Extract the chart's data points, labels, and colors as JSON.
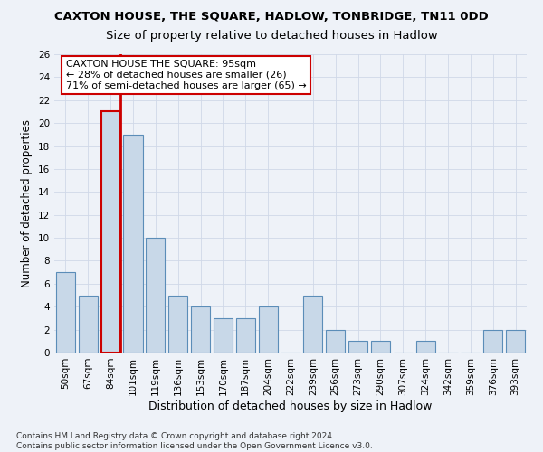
{
  "title": "CAXTON HOUSE, THE SQUARE, HADLOW, TONBRIDGE, TN11 0DD",
  "subtitle": "Size of property relative to detached houses in Hadlow",
  "xlabel": "Distribution of detached houses by size in Hadlow",
  "ylabel": "Number of detached properties",
  "categories": [
    "50sqm",
    "67sqm",
    "84sqm",
    "101sqm",
    "119sqm",
    "136sqm",
    "153sqm",
    "170sqm",
    "187sqm",
    "204sqm",
    "222sqm",
    "239sqm",
    "256sqm",
    "273sqm",
    "290sqm",
    "307sqm",
    "324sqm",
    "342sqm",
    "359sqm",
    "376sqm",
    "393sqm"
  ],
  "values": [
    7,
    5,
    21,
    19,
    10,
    5,
    4,
    3,
    3,
    4,
    0,
    5,
    2,
    1,
    1,
    0,
    1,
    0,
    0,
    2,
    2
  ],
  "bar_color": "#c8d8e8",
  "bar_edge_color": "#5b8db8",
  "highlight_bar_index": 2,
  "highlight_edge_color": "#cc0000",
  "vline_x_index": 2,
  "vline_color": "#cc0000",
  "annotation_text": "CAXTON HOUSE THE SQUARE: 95sqm\n← 28% of detached houses are smaller (26)\n71% of semi-detached houses are larger (65) →",
  "annotation_box_color": "#ffffff",
  "annotation_box_edge_color": "#cc0000",
  "ylim": [
    0,
    26
  ],
  "yticks": [
    0,
    2,
    4,
    6,
    8,
    10,
    12,
    14,
    16,
    18,
    20,
    22,
    24,
    26
  ],
  "grid_color": "#d0d8e8",
  "background_color": "#eef2f8",
  "footer_text": "Contains HM Land Registry data © Crown copyright and database right 2024.\nContains public sector information licensed under the Open Government Licence v3.0.",
  "title_fontsize": 9.5,
  "subtitle_fontsize": 9.5,
  "xlabel_fontsize": 9,
  "ylabel_fontsize": 8.5,
  "tick_fontsize": 7.5,
  "annotation_fontsize": 8,
  "footer_fontsize": 6.5
}
